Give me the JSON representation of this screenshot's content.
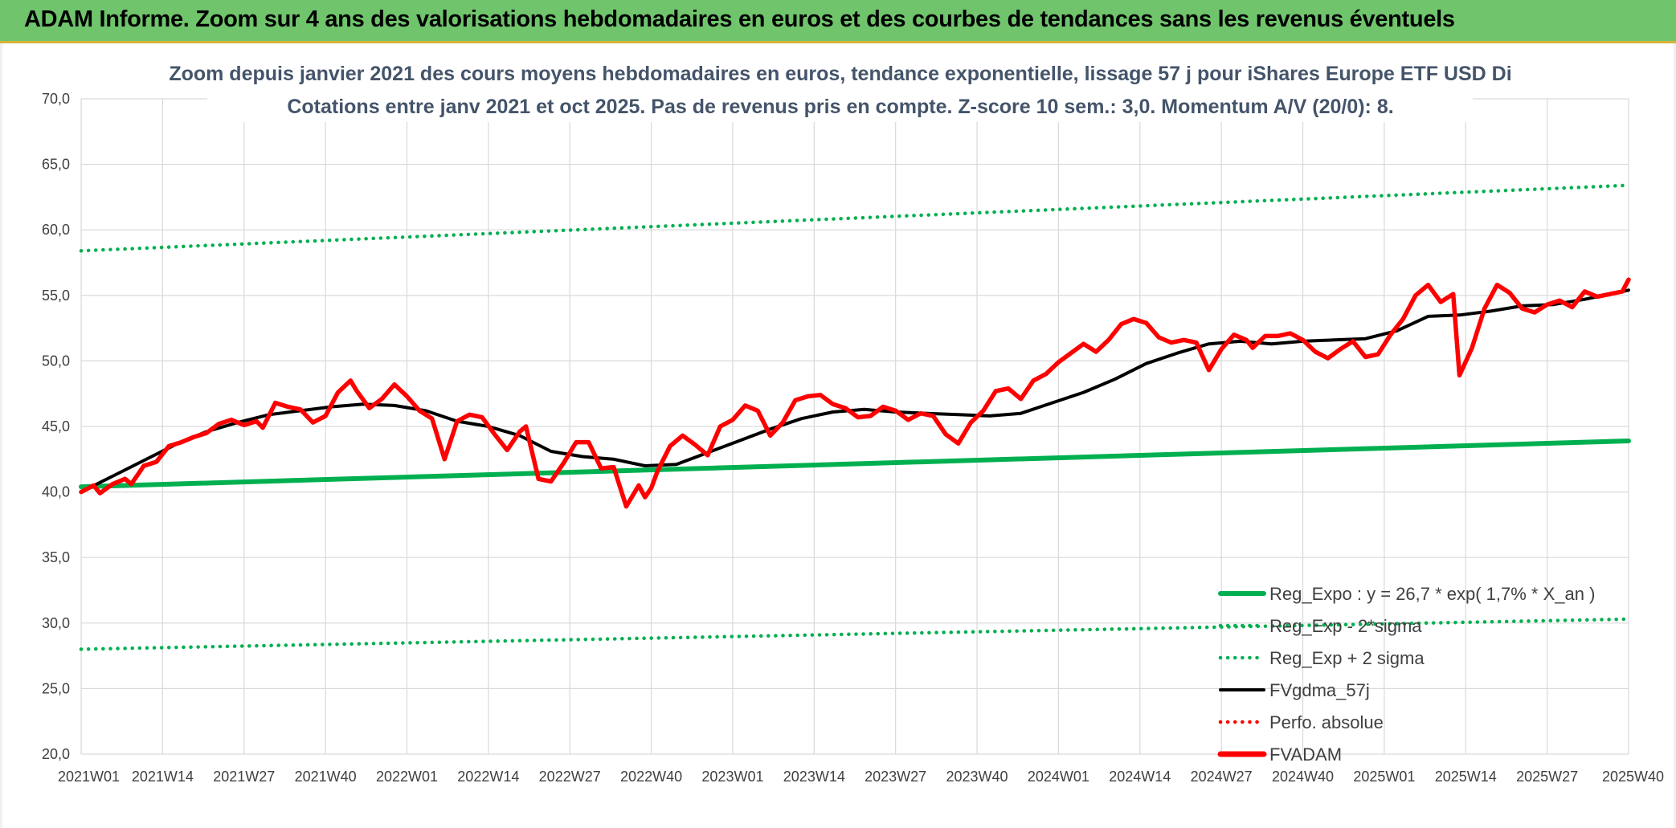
{
  "banner": {
    "title": "ADAM Informe. Zoom sur 4 ans des valorisations hebdomadaires en euros et des courbes de tendances sans les revenus éventuels"
  },
  "colors": {
    "banner_bg": "#6fc46c",
    "reg_expo": "#00b050",
    "fv_gdma": "#000000",
    "fvadam": "#ff0000",
    "perfo": "#ff0000",
    "title_text": "#44546a"
  },
  "chart_data": {
    "type": "line",
    "title": "Zoom depuis janvier 2021 des cours moyens hebdomadaires en euros, tendance exponentielle, lissage 57 j pour iShares Europe ETF USD Di",
    "subtitle": "Cotations entre janv 2021 et oct 2025. Pas de revenus pris en compte. Z-score 10 sem.: 3,0. Momentum A/V (20/0): 8.",
    "xlabel": "",
    "ylabel": "",
    "ylim": [
      20,
      70
    ],
    "y_ticks": [
      "20,0",
      "25,0",
      "30,0",
      "35,0",
      "40,0",
      "45,0",
      "50,0",
      "55,0",
      "60,0",
      "65,0",
      "70,0"
    ],
    "x_tick_labels": [
      "2021W01",
      "2021W14",
      "2021W27",
      "2021W40",
      "2022W01",
      "2022W14",
      "2022W27",
      "2022W40",
      "2023W01",
      "2023W14",
      "2023W27",
      "2023W40",
      "2024W01",
      "2024W14",
      "2024W27",
      "2024W40",
      "2025W01",
      "2025W14",
      "2025W27",
      "2025W40"
    ],
    "x_tick_weeks": [
      0,
      13,
      26,
      39,
      52,
      65,
      78,
      91,
      104,
      117,
      130,
      143,
      156,
      169,
      182,
      195,
      208,
      221,
      234,
      247
    ],
    "grid": true,
    "legend_position": "bottom-right",
    "series": [
      {
        "name": "Reg_Expo : y = 26,7 * exp( 1,7% *  X_an )",
        "style": "solid-thick",
        "color": "#00b050",
        "x": [
          0,
          247
        ],
        "values": [
          40.4,
          43.9
        ]
      },
      {
        "name": "Reg_Exp - 2*sigma",
        "style": "dotted",
        "color": "#00b050",
        "x": [
          0,
          247
        ],
        "values": [
          28.0,
          30.3
        ]
      },
      {
        "name": "Reg_Exp + 2 sigma",
        "style": "dotted",
        "color": "#00b050",
        "x": [
          0,
          247
        ],
        "values": [
          58.4,
          63.4
        ]
      },
      {
        "name": "FVgdma_57j",
        "style": "solid",
        "color": "#000000",
        "x": [
          0,
          5,
          10,
          15,
          20,
          25,
          30,
          35,
          40,
          45,
          50,
          55,
          60,
          65,
          70,
          75,
          80,
          85,
          90,
          95,
          100,
          105,
          110,
          115,
          120,
          125,
          130,
          135,
          140,
          145,
          150,
          155,
          160,
          165,
          170,
          175,
          180,
          185,
          190,
          195,
          200,
          205,
          210,
          215,
          220,
          225,
          230,
          235,
          240,
          245,
          247
        ],
        "values": [
          40.0,
          41.2,
          42.4,
          43.6,
          44.6,
          45.3,
          45.9,
          46.2,
          46.5,
          46.7,
          46.6,
          46.2,
          45.4,
          45.0,
          44.3,
          43.1,
          42.7,
          42.5,
          42.0,
          42.1,
          43.0,
          43.9,
          44.8,
          45.6,
          46.1,
          46.3,
          46.1,
          46.0,
          45.9,
          45.8,
          46.0,
          46.8,
          47.6,
          48.6,
          49.8,
          50.6,
          51.3,
          51.5,
          51.3,
          51.5,
          51.6,
          51.7,
          52.3,
          53.4,
          53.5,
          53.8,
          54.2,
          54.3,
          54.7,
          55.2,
          55.4
        ]
      },
      {
        "name": "Perfo. absolue",
        "style": "dotted",
        "color": "#ff0000",
        "x": [],
        "values": []
      },
      {
        "name": "FVADAM",
        "style": "solid-thick",
        "color": "#ff0000",
        "x": [
          0,
          2,
          3,
          5,
          7,
          8,
          10,
          12,
          14,
          16,
          18,
          20,
          22,
          24,
          26,
          28,
          29,
          31,
          33,
          35,
          37,
          39,
          41,
          43,
          44,
          46,
          48,
          50,
          52,
          54,
          56,
          58,
          60,
          62,
          64,
          66,
          68,
          70,
          71,
          73,
          75,
          77,
          79,
          81,
          83,
          85,
          87,
          89,
          90,
          91,
          92,
          94,
          96,
          98,
          100,
          102,
          104,
          106,
          108,
          110,
          112,
          114,
          116,
          118,
          120,
          122,
          124,
          126,
          128,
          130,
          132,
          134,
          136,
          138,
          140,
          142,
          144,
          146,
          148,
          150,
          152,
          154,
          156,
          158,
          160,
          162,
          164,
          166,
          168,
          170,
          172,
          174,
          176,
          178,
          180,
          182,
          184,
          186,
          187,
          189,
          191,
          193,
          195,
          197,
          199,
          201,
          203,
          205,
          207,
          209,
          211,
          213,
          215,
          217,
          219,
          220,
          222,
          224,
          226,
          228,
          230,
          232,
          234,
          236,
          238,
          240,
          242,
          244,
          246,
          247
        ],
        "values": [
          40.0,
          40.5,
          39.9,
          40.6,
          41.0,
          40.6,
          42.0,
          42.3,
          43.5,
          43.8,
          44.2,
          44.5,
          45.2,
          45.5,
          45.1,
          45.4,
          44.9,
          46.8,
          46.5,
          46.3,
          45.3,
          45.8,
          47.6,
          48.5,
          47.7,
          46.4,
          47.1,
          48.2,
          47.3,
          46.2,
          45.6,
          42.5,
          45.4,
          45.9,
          45.7,
          44.4,
          43.2,
          44.6,
          45.0,
          41.0,
          40.8,
          42.2,
          43.8,
          43.8,
          41.8,
          41.9,
          38.9,
          40.5,
          39.6,
          40.3,
          41.6,
          43.5,
          44.3,
          43.6,
          42.8,
          45.0,
          45.5,
          46.6,
          46.2,
          44.3,
          45.3,
          47.0,
          47.3,
          47.4,
          46.7,
          46.4,
          45.7,
          45.8,
          46.5,
          46.2,
          45.5,
          46.0,
          45.8,
          44.4,
          43.7,
          45.3,
          46.2,
          47.7,
          47.9,
          47.1,
          48.5,
          49.0,
          49.9,
          50.6,
          51.3,
          50.7,
          51.6,
          52.8,
          53.2,
          52.9,
          51.8,
          51.4,
          51.6,
          51.4,
          49.3,
          50.9,
          52.0,
          51.6,
          51.0,
          51.9,
          51.9,
          52.1,
          51.6,
          50.7,
          50.2,
          50.9,
          51.5,
          50.3,
          50.5,
          52.0,
          53.2,
          55.0,
          55.8,
          54.5,
          55.1,
          48.9,
          51.0,
          54.0,
          55.8,
          55.2,
          54.0,
          53.7,
          54.3,
          54.6,
          54.1,
          55.3,
          54.9,
          55.1,
          55.3,
          56.2
        ]
      }
    ]
  }
}
